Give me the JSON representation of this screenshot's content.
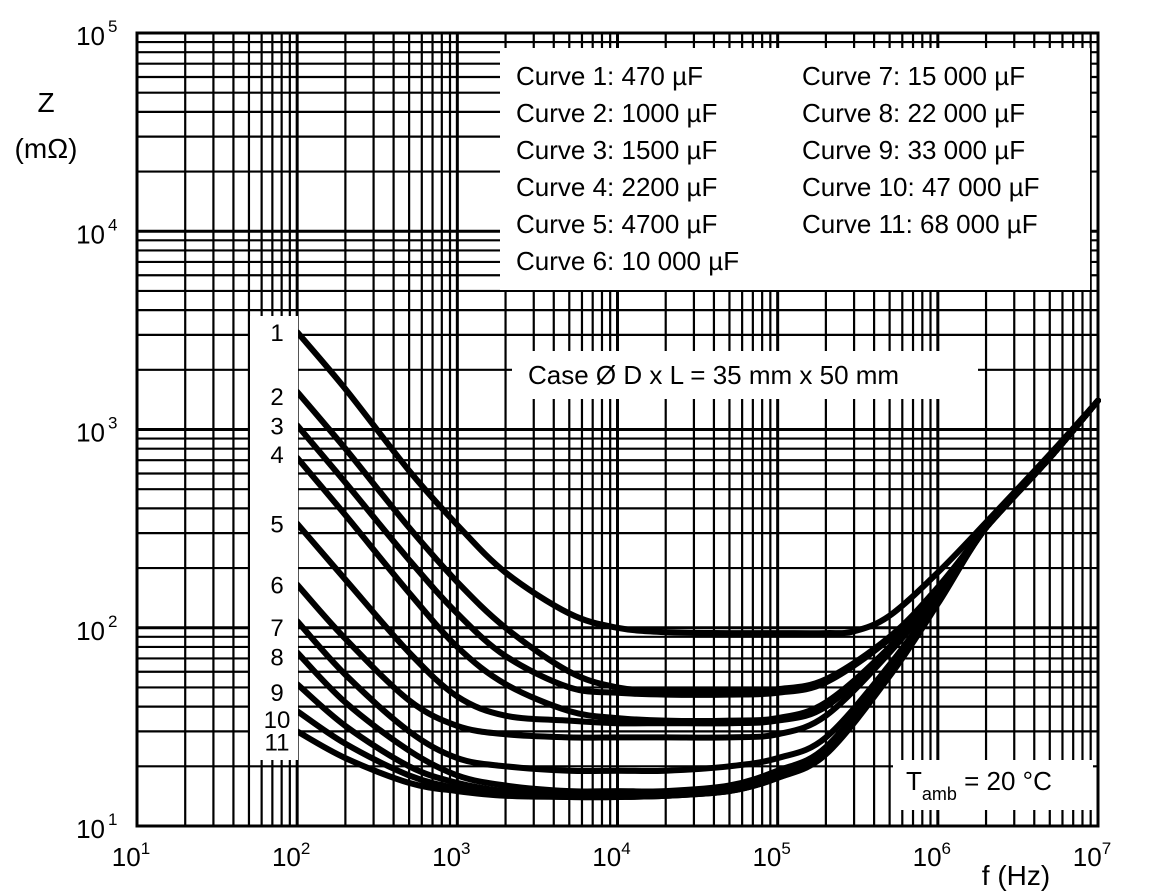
{
  "chart_data": {
    "type": "line",
    "x_scale": "log",
    "y_scale": "log",
    "xlabel": "f (Hz)",
    "ylabel": "Z",
    "ylabel_unit": "(mΩ)",
    "xlim": [
      10,
      10000000
    ],
    "ylim": [
      10,
      100000
    ],
    "grid": true,
    "x_ticks": [
      {
        "base": "10",
        "exp": "1",
        "value": 10
      },
      {
        "base": "10",
        "exp": "2",
        "value": 100
      },
      {
        "base": "10",
        "exp": "3",
        "value": 1000
      },
      {
        "base": "10",
        "exp": "4",
        "value": 10000
      },
      {
        "base": "10",
        "exp": "5",
        "value": 100000
      },
      {
        "base": "10",
        "exp": "6",
        "value": 1000000
      },
      {
        "base": "10",
        "exp": "7",
        "value": 10000000
      }
    ],
    "y_ticks": [
      {
        "base": "10",
        "exp": "1",
        "value": 10
      },
      {
        "base": "10",
        "exp": "2",
        "value": 100
      },
      {
        "base": "10",
        "exp": "3",
        "value": 1000
      },
      {
        "base": "10",
        "exp": "4",
        "value": 10000
      },
      {
        "base": "10",
        "exp": "5",
        "value": 100000
      }
    ],
    "legend": {
      "placement": "top-right",
      "col1": [
        "Curve 1: 470 µF",
        "Curve 2: 1000 µF",
        "Curve 3: 1500 µF",
        "Curve 4: 2200 µF",
        "Curve 5: 4700 µF",
        "Curve 6: 10 000 µF"
      ],
      "col2": [
        "Curve 7: 15 000 µF",
        "Curve 8: 22 000 µF",
        "Curve 9: 33 000 µF",
        "Curve 10: 47 000 µF",
        "Curve 11: 68 000 µF"
      ]
    },
    "annotations": {
      "case": "Case Ø D x L = 35 mm x 50 mm",
      "temp_main": "T",
      "temp_sub": "amb",
      "temp_rest": " = 20 °C"
    },
    "series": [
      {
        "name": "1",
        "x": [
          100,
          200,
          500,
          1000,
          2000,
          5000,
          10000,
          20000,
          50000,
          100000,
          200000,
          300000,
          500000,
          1000000,
          2000000,
          5000000,
          10000000
        ],
        "y": [
          3100,
          1600,
          620,
          330,
          190,
          118,
          100,
          95,
          94,
          94,
          94,
          96,
          115,
          190,
          340,
          750,
          1400
        ]
      },
      {
        "name": "2",
        "x": [
          100,
          200,
          500,
          1000,
          2000,
          5000,
          10000,
          20000,
          50000,
          100000,
          200000,
          500000,
          1000000,
          2000000,
          5000000,
          10000000
        ],
        "y": [
          1550,
          800,
          320,
          170,
          100,
          60,
          50,
          48,
          48,
          49,
          55,
          90,
          160,
          320,
          720,
          1400
        ]
      },
      {
        "name": "3",
        "x": [
          100,
          200,
          500,
          1000,
          2000,
          5000,
          10000,
          20000,
          50000,
          100000,
          200000,
          500000,
          1000000,
          2000000,
          5000000,
          10000000
        ],
        "y": [
          1050,
          540,
          220,
          118,
          72,
          50,
          47,
          46,
          46,
          47,
          53,
          88,
          158,
          320,
          720,
          1400
        ]
      },
      {
        "name": "4",
        "x": [
          100,
          200,
          500,
          1000,
          2000,
          5000,
          10000,
          20000,
          50000,
          100000,
          200000,
          500000,
          1000000,
          2000000,
          5000000,
          10000000
        ],
        "y": [
          720,
          370,
          150,
          80,
          52,
          38,
          35,
          34,
          34,
          35,
          42,
          80,
          155,
          320,
          720,
          1400
        ]
      },
      {
        "name": "5",
        "x": [
          100,
          200,
          500,
          1000,
          2000,
          5000,
          10000,
          20000,
          50000,
          100000,
          200000,
          500000,
          1000000,
          2000000,
          5000000,
          10000000
        ],
        "y": [
          335,
          175,
          75,
          45,
          36,
          34,
          33,
          33,
          33,
          34,
          40,
          78,
          153,
          320,
          720,
          1400
        ]
      },
      {
        "name": "6",
        "x": [
          100,
          200,
          500,
          1000,
          2000,
          5000,
          10000,
          20000,
          50000,
          100000,
          200000,
          500000,
          1000000,
          2000000,
          5000000,
          10000000
        ],
        "y": [
          165,
          88,
          43,
          32,
          29,
          28,
          28,
          28,
          28,
          29,
          36,
          75,
          150,
          320,
          720,
          1400
        ]
      },
      {
        "name": "7",
        "x": [
          100,
          200,
          500,
          1000,
          2000,
          5000,
          10000,
          20000,
          50000,
          100000,
          200000,
          500000,
          1000000,
          2000000,
          5000000,
          10000000
        ],
        "y": [
          108,
          58,
          30,
          22,
          20,
          19,
          19,
          19,
          20,
          22,
          28,
          65,
          140,
          320,
          720,
          1400
        ]
      },
      {
        "name": "8",
        "x": [
          100,
          200,
          500,
          1000,
          2000,
          5000,
          10000,
          20000,
          50000,
          100000,
          200000,
          500000,
          1000000,
          2000000,
          5000000,
          10000000
        ],
        "y": [
          75,
          42,
          24,
          18,
          16,
          15,
          15,
          15,
          16,
          19,
          25,
          62,
          138,
          320,
          720,
          1400
        ]
      },
      {
        "name": "9",
        "x": [
          100,
          200,
          500,
          1000,
          2000,
          5000,
          10000,
          20000,
          50000,
          100000,
          200000,
          500000,
          1000000,
          2000000,
          5000000,
          10000000
        ],
        "y": [
          52,
          32,
          20,
          16.5,
          15,
          14.5,
          14.5,
          14.5,
          15.5,
          18,
          24,
          60,
          135,
          320,
          720,
          1400
        ]
      },
      {
        "name": "10",
        "x": [
          100,
          200,
          500,
          1000,
          2000,
          5000,
          10000,
          20000,
          50000,
          100000,
          200000,
          500000,
          1000000,
          2000000,
          5000000,
          10000000
        ],
        "y": [
          38,
          26,
          18,
          15.5,
          14.5,
          14,
          14,
          14.2,
          15,
          17.5,
          23.5,
          58,
          133,
          320,
          720,
          1400
        ]
      },
      {
        "name": "11",
        "x": [
          100,
          200,
          500,
          1000,
          2000,
          5000,
          10000,
          20000,
          50000,
          100000,
          200000,
          500000,
          1000000,
          2000000,
          5000000,
          10000000
        ],
        "y": [
          30,
          22,
          16.5,
          15,
          14.2,
          14,
          14,
          14.2,
          15,
          17.5,
          23,
          57,
          132,
          320,
          720,
          1400
        ]
      }
    ]
  }
}
